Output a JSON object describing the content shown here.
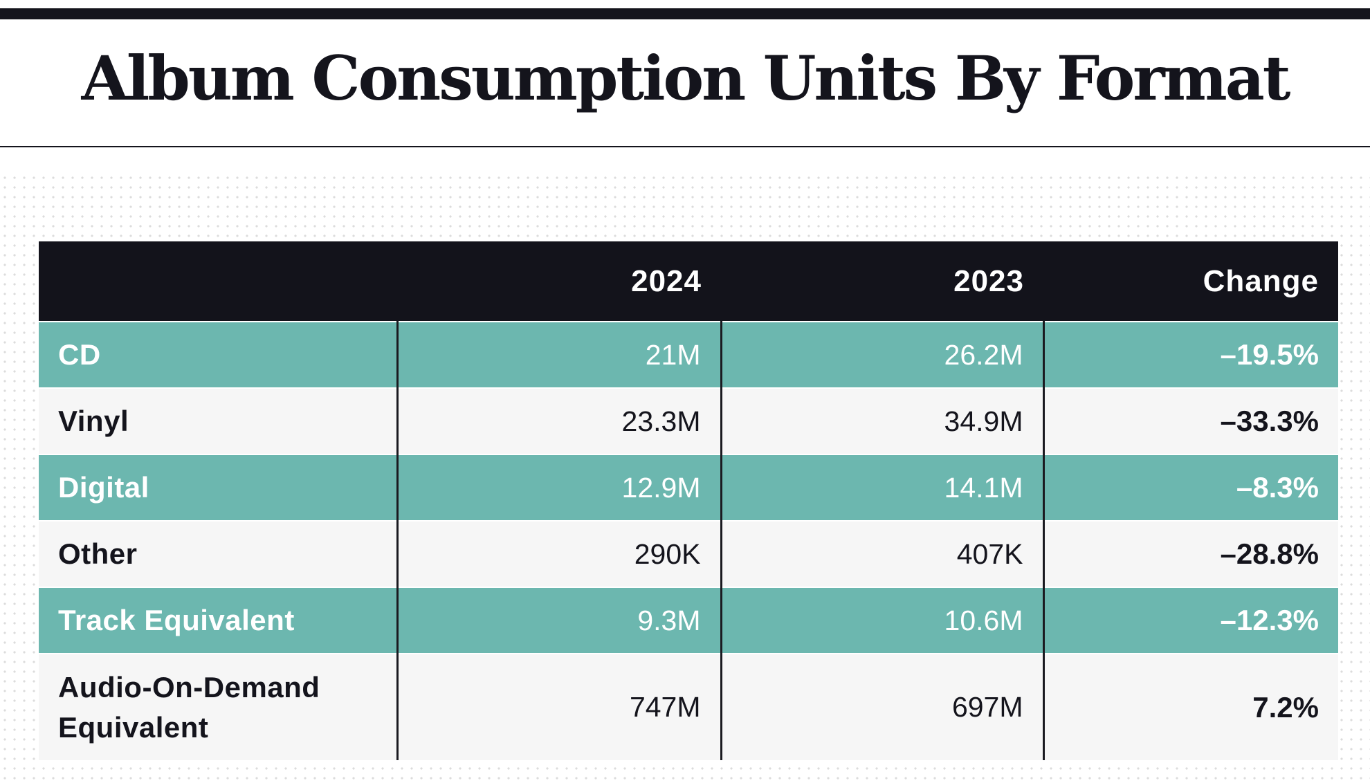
{
  "chart_data": {
    "type": "table",
    "title": "Album Consumption Units By Format",
    "columns": [
      "",
      "2024",
      "2023",
      "Change"
    ],
    "rows": [
      {
        "format": "CD",
        "y2024": "21M",
        "y2023": "26.2M",
        "change": "–19.5%"
      },
      {
        "format": "Vinyl",
        "y2024": "23.3M",
        "y2023": "34.9M",
        "change": "–33.3%"
      },
      {
        "format": "Digital",
        "y2024": "12.9M",
        "y2023": "14.1M",
        "change": "–8.3%"
      },
      {
        "format": "Other",
        "y2024": "290K",
        "y2023": "407K",
        "change": "–28.8%"
      },
      {
        "format": "Track Equivalent",
        "y2024": "9.3M",
        "y2023": "10.6M",
        "change": "–12.3%"
      },
      {
        "format": "Audio-On-Demand Equivalent",
        "y2024": "747M",
        "y2023": "697M",
        "change": "7.2%"
      }
    ]
  },
  "colors": {
    "header_bg": "#13131b",
    "teal_row": "#6cb7af",
    "light_row": "#f6f6f6",
    "text_dark": "#14141c"
  }
}
